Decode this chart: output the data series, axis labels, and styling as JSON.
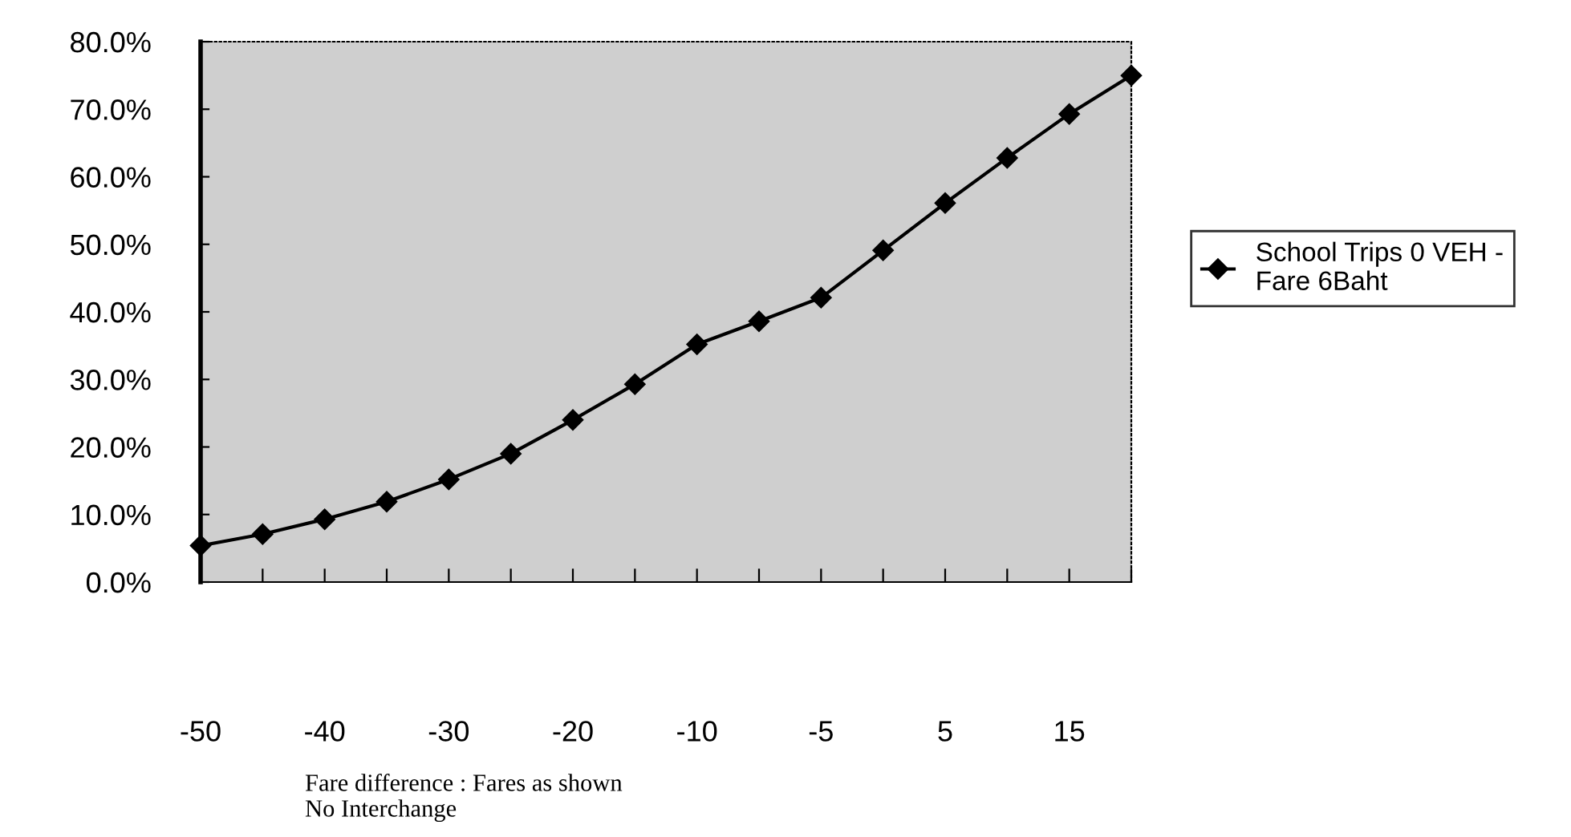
{
  "chart_data": {
    "type": "line",
    "xlabel": "Fare difference : Fares as shown\nNo Interchange",
    "categories": [
      "-50",
      null,
      "-40",
      null,
      "-30",
      null,
      "-20",
      null,
      "-10",
      null,
      "-5",
      null,
      "5",
      null,
      "15",
      null
    ],
    "series": [
      {
        "name": "School Trips 0 VEH -\nFare 6Baht",
        "color": "#000000",
        "values": [
          5.4,
          7.1,
          9.3,
          11.9,
          15.2,
          19.0,
          24.0,
          29.3,
          35.2,
          38.6,
          42.1,
          49.1,
          56.1,
          62.8,
          69.3,
          75.0
        ]
      }
    ],
    "ylim": [
      0,
      80
    ],
    "yticks": [
      {
        "value": 0,
        "label": "0.0%"
      },
      {
        "value": 10,
        "label": "10.0%"
      },
      {
        "value": 20,
        "label": "20.0%"
      },
      {
        "value": 30,
        "label": "30.0%"
      },
      {
        "value": 40,
        "label": "40.0%"
      },
      {
        "value": 50,
        "label": "50.0%"
      },
      {
        "value": 60,
        "label": "60.0%"
      },
      {
        "value": 70,
        "label": "70.0%"
      },
      {
        "value": 80,
        "label": "80.0%"
      }
    ],
    "marker": "diamond",
    "line_style": "solid",
    "grid": false,
    "legend": "right"
  }
}
